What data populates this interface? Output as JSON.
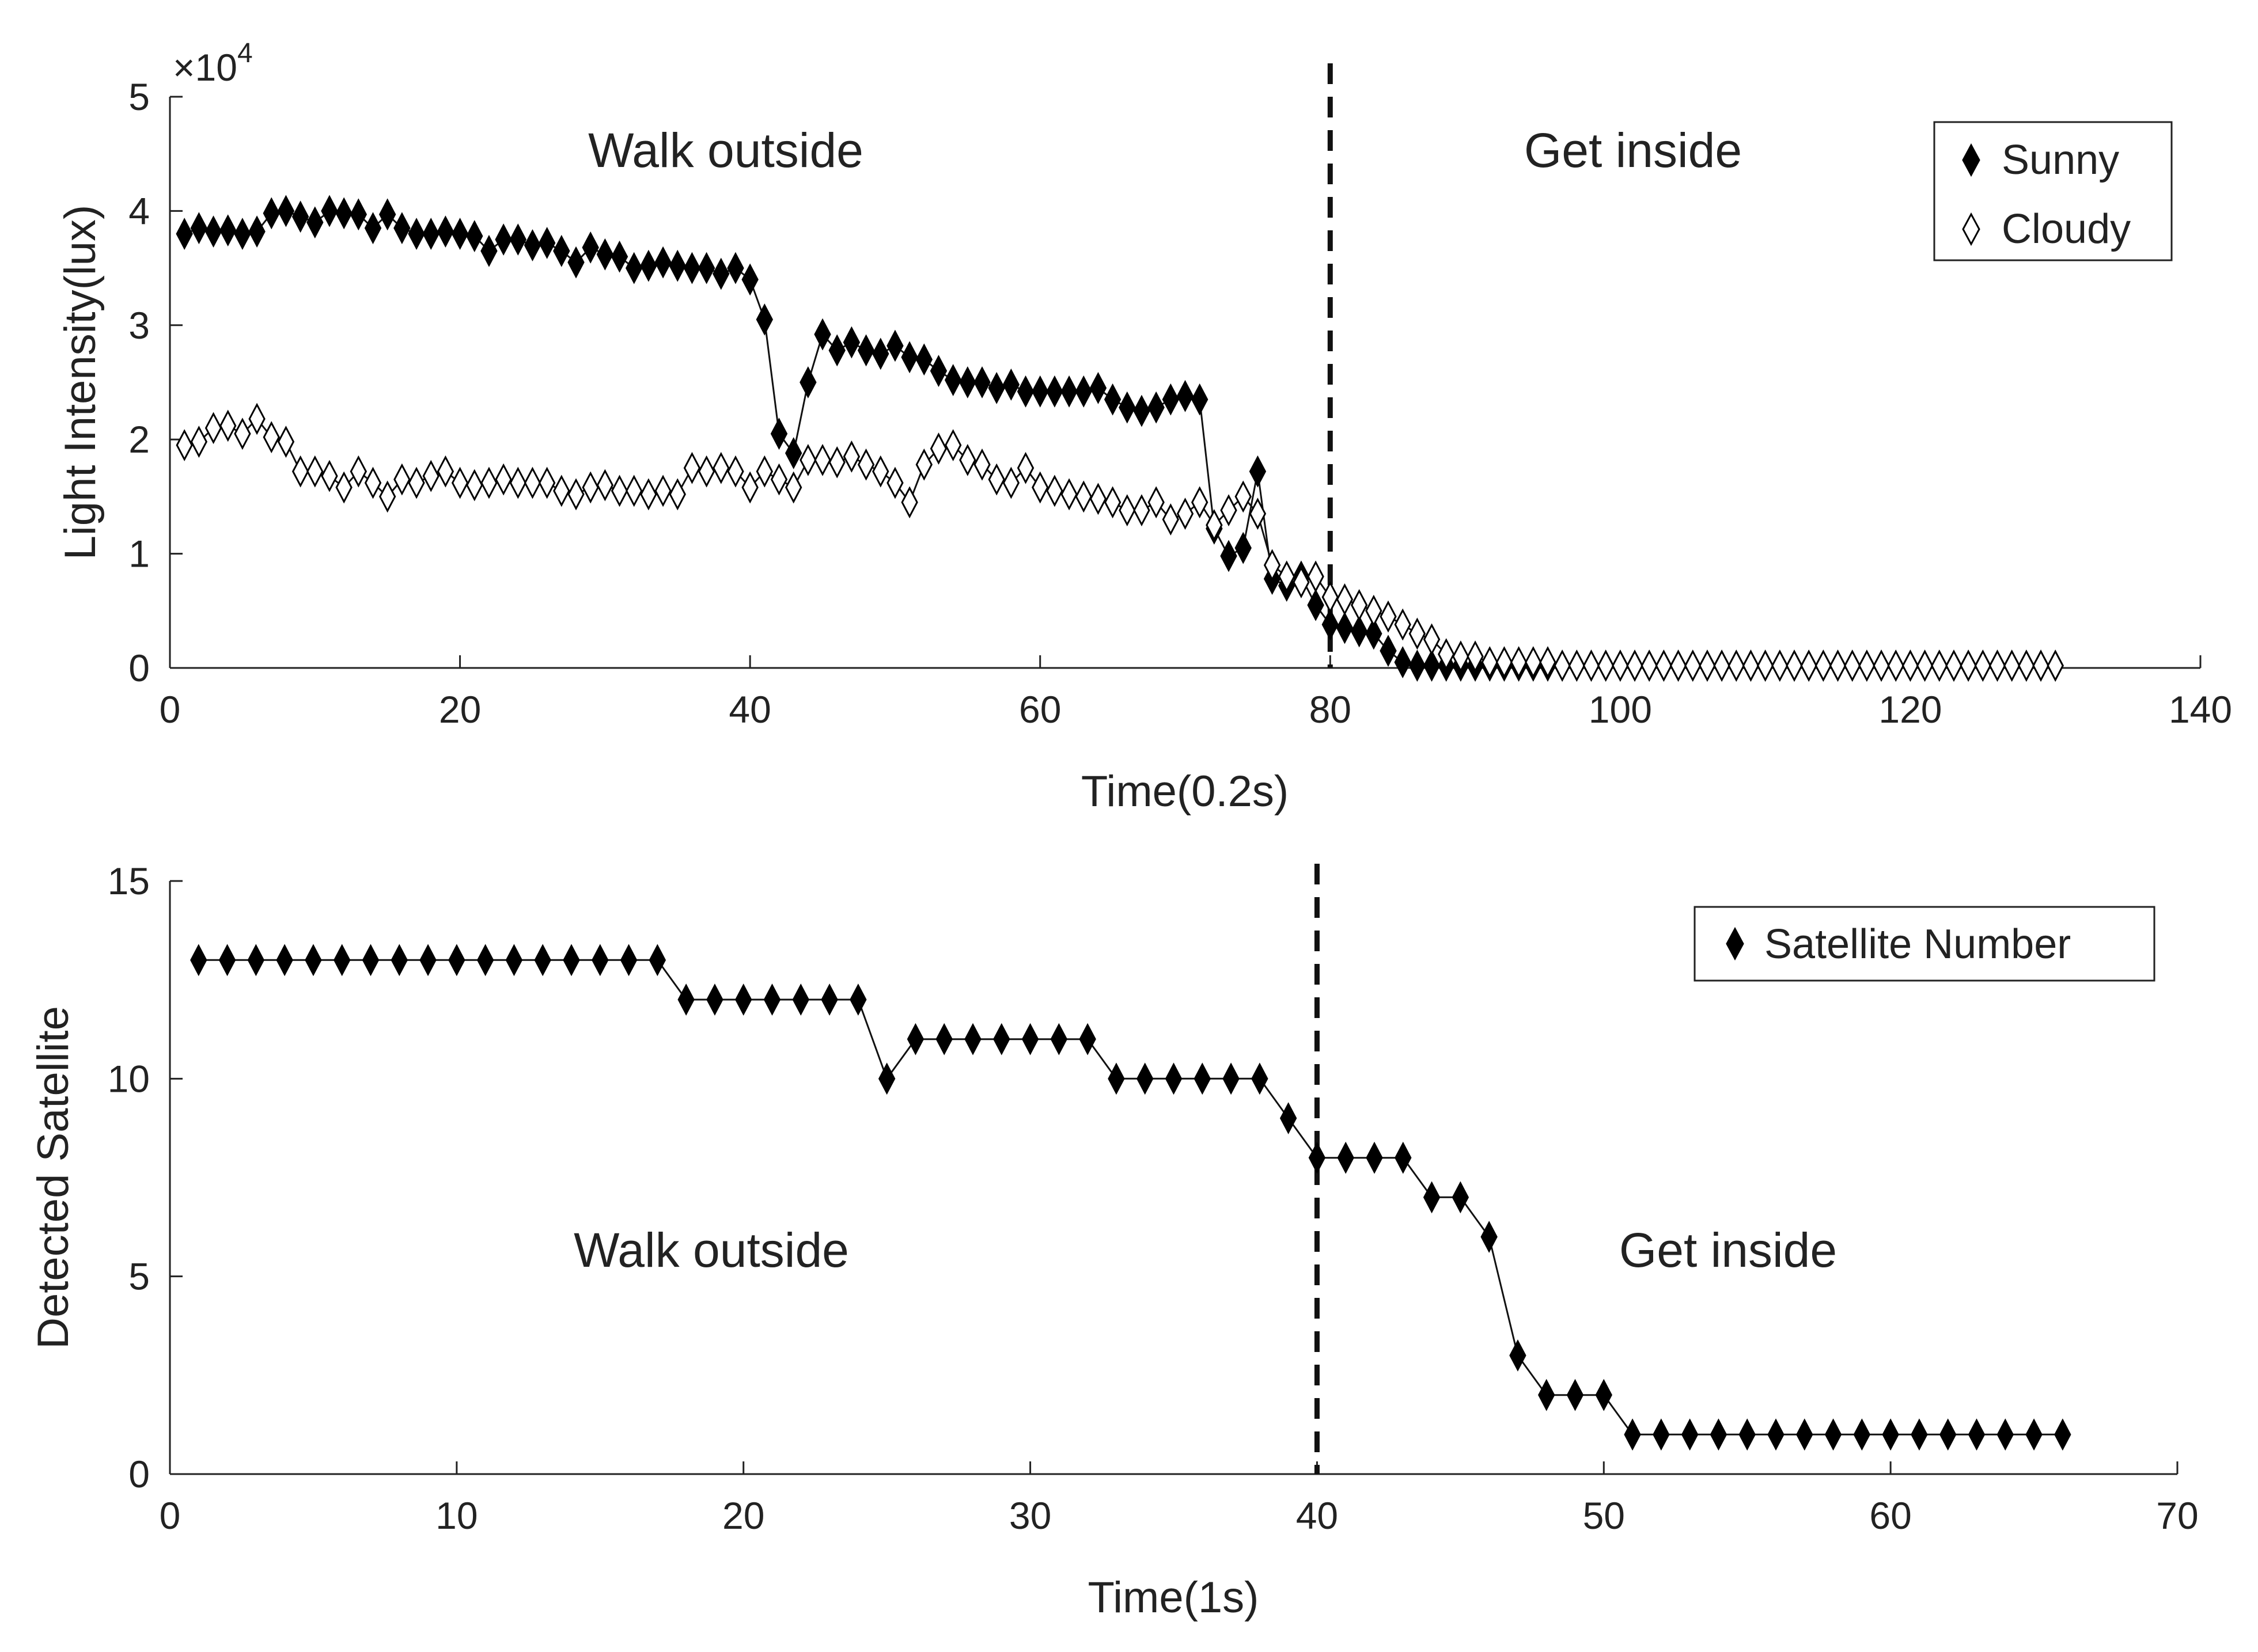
{
  "chart_data": [
    {
      "type": "line",
      "title": "",
      "xlabel": "Time(0.2s)",
      "ylabel": "Light Intensity(lux)",
      "y_multiplier": "×10",
      "y_multiplier_exp": "4",
      "xlim": [
        0,
        140
      ],
      "ylim": [
        0,
        5
      ],
      "xticks": [
        0,
        20,
        40,
        60,
        80,
        100,
        120,
        140
      ],
      "yticks": [
        0,
        1,
        2,
        3,
        4,
        5
      ],
      "divider_x": 80,
      "annotations": [
        "Walk outside",
        "Get inside"
      ],
      "legend_position": "top-right",
      "grid": false,
      "series": [
        {
          "name": "Sunny",
          "marker": "filled-diamond",
          "x": [
            1,
            2,
            3,
            4,
            5,
            6,
            7,
            8,
            9,
            10,
            11,
            12,
            13,
            14,
            15,
            16,
            17,
            18,
            19,
            20,
            21,
            22,
            23,
            24,
            25,
            26,
            27,
            28,
            29,
            30,
            31,
            32,
            33,
            34,
            35,
            36,
            37,
            38,
            39,
            40,
            41,
            42,
            43,
            44,
            45,
            46,
            47,
            48,
            49,
            50,
            51,
            52,
            53,
            54,
            55,
            56,
            57,
            58,
            59,
            60,
            61,
            62,
            63,
            64,
            65,
            66,
            67,
            68,
            69,
            70,
            71,
            72,
            73,
            74,
            75,
            76,
            77,
            78,
            79,
            80,
            81,
            82,
            83,
            84,
            85,
            86,
            87,
            88,
            89,
            90,
            91,
            92,
            93,
            94,
            95,
            96,
            97,
            98,
            99,
            100,
            101,
            102,
            103,
            104,
            105,
            106,
            107,
            108,
            109,
            110,
            111,
            112,
            113,
            114,
            115,
            116,
            117,
            118,
            119,
            120,
            121,
            122,
            123,
            124,
            125,
            126,
            127,
            128,
            129,
            130
          ],
          "values": [
            3.8,
            3.85,
            3.82,
            3.83,
            3.8,
            3.82,
            3.98,
            4.0,
            3.95,
            3.9,
            4.0,
            3.98,
            3.97,
            3.85,
            3.97,
            3.85,
            3.8,
            3.8,
            3.82,
            3.8,
            3.78,
            3.65,
            3.75,
            3.75,
            3.7,
            3.72,
            3.65,
            3.55,
            3.68,
            3.62,
            3.6,
            3.5,
            3.52,
            3.55,
            3.52,
            3.5,
            3.5,
            3.45,
            3.5,
            3.4,
            3.05,
            2.05,
            1.88,
            2.5,
            2.92,
            2.78,
            2.85,
            2.78,
            2.75,
            2.82,
            2.72,
            2.7,
            2.6,
            2.52,
            2.5,
            2.5,
            2.45,
            2.48,
            2.42,
            2.42,
            2.42,
            2.42,
            2.42,
            2.45,
            2.35,
            2.28,
            2.25,
            2.28,
            2.35,
            2.38,
            2.35,
            1.22,
            0.98,
            1.05,
            1.72,
            0.78,
            0.72,
            0.8,
            0.55,
            0.38,
            0.35,
            0.32,
            0.3,
            0.15,
            0.05,
            0.02,
            0.02,
            0.02,
            0.02,
            0.02,
            0.02,
            0.02,
            0.02,
            0.02,
            0.02,
            0.02,
            0.02,
            0.02,
            0.02,
            0.02,
            0.02,
            0.02,
            0.02,
            0.02,
            0.02,
            0.02,
            0.02,
            0.02,
            0.02,
            0.02,
            0.02,
            0.02,
            0.02,
            0.02,
            0.02,
            0.02,
            0.02,
            0.02,
            0.02,
            0.02,
            0.02,
            0.02,
            0.02,
            0.02,
            0.02,
            0.02,
            0.02,
            0.02,
            0.02,
            0.02
          ]
        },
        {
          "name": "Cloudy",
          "marker": "hollow-diamond",
          "x": [
            1,
            2,
            3,
            4,
            5,
            6,
            7,
            8,
            9,
            10,
            11,
            12,
            13,
            14,
            15,
            16,
            17,
            18,
            19,
            20,
            21,
            22,
            23,
            24,
            25,
            26,
            27,
            28,
            29,
            30,
            31,
            32,
            33,
            34,
            35,
            36,
            37,
            38,
            39,
            40,
            41,
            42,
            43,
            44,
            45,
            46,
            47,
            48,
            49,
            50,
            51,
            52,
            53,
            54,
            55,
            56,
            57,
            58,
            59,
            60,
            61,
            62,
            63,
            64,
            65,
            66,
            67,
            68,
            69,
            70,
            71,
            72,
            73,
            74,
            75,
            76,
            77,
            78,
            79,
            80,
            81,
            82,
            83,
            84,
            85,
            86,
            87,
            88,
            89,
            90,
            91,
            92,
            93,
            94,
            95,
            96,
            97,
            98,
            99,
            100,
            101,
            102,
            103,
            104,
            105,
            106,
            107,
            108,
            109,
            110,
            111,
            112,
            113,
            114,
            115,
            116,
            117,
            118,
            119,
            120,
            121,
            122,
            123,
            124,
            125,
            126,
            127,
            128,
            129,
            130
          ],
          "values": [
            1.95,
            1.98,
            2.1,
            2.12,
            2.05,
            2.18,
            2.02,
            1.98,
            1.72,
            1.72,
            1.68,
            1.58,
            1.72,
            1.62,
            1.5,
            1.65,
            1.62,
            1.68,
            1.72,
            1.62,
            1.6,
            1.62,
            1.65,
            1.62,
            1.62,
            1.62,
            1.55,
            1.52,
            1.58,
            1.6,
            1.55,
            1.55,
            1.52,
            1.55,
            1.52,
            1.75,
            1.72,
            1.75,
            1.72,
            1.58,
            1.72,
            1.65,
            1.58,
            1.82,
            1.82,
            1.8,
            1.85,
            1.78,
            1.72,
            1.62,
            1.45,
            1.78,
            1.92,
            1.95,
            1.82,
            1.78,
            1.65,
            1.62,
            1.75,
            1.58,
            1.55,
            1.52,
            1.5,
            1.48,
            1.45,
            1.38,
            1.38,
            1.45,
            1.3,
            1.35,
            1.45,
            1.25,
            1.38,
            1.5,
            1.35,
            0.9,
            0.8,
            0.75,
            0.8,
            0.62,
            0.6,
            0.55,
            0.5,
            0.45,
            0.38,
            0.3,
            0.25,
            0.12,
            0.1,
            0.1,
            0.05,
            0.05,
            0.05,
            0.05,
            0.05,
            0.02,
            0.02,
            0.02,
            0.02,
            0.02,
            0.02,
            0.02,
            0.02,
            0.02,
            0.02,
            0.02,
            0.02,
            0.02,
            0.02,
            0.02,
            0.02,
            0.02,
            0.02,
            0.02,
            0.02,
            0.02,
            0.02,
            0.02,
            0.02,
            0.02,
            0.02,
            0.02,
            0.02,
            0.02,
            0.02,
            0.02,
            0.02,
            0.02,
            0.02,
            0.02
          ]
        }
      ]
    },
    {
      "type": "line",
      "title": "",
      "xlabel": "Time(1s)",
      "ylabel": "Detected Satellite",
      "xlim": [
        0,
        70
      ],
      "ylim": [
        0,
        15
      ],
      "xticks": [
        0,
        10,
        20,
        30,
        40,
        50,
        60,
        70
      ],
      "yticks": [
        0,
        5,
        10,
        15
      ],
      "divider_x": 40,
      "annotations": [
        "Walk outside",
        "Get inside"
      ],
      "legend_position": "top-right",
      "grid": false,
      "series": [
        {
          "name": "Satellite Number",
          "marker": "filled-diamond",
          "x": [
            1,
            2,
            3,
            4,
            5,
            6,
            7,
            8,
            9,
            10,
            11,
            12,
            13,
            14,
            15,
            16,
            17,
            18,
            19,
            20,
            21,
            22,
            23,
            24,
            25,
            26,
            27,
            28,
            29,
            30,
            31,
            32,
            33,
            34,
            35,
            36,
            37,
            38,
            39,
            40,
            41,
            42,
            43,
            44,
            45,
            46,
            47,
            48,
            49,
            50,
            51,
            52,
            53,
            54,
            55,
            56,
            57,
            58,
            59,
            60,
            61,
            62,
            63,
            64,
            65,
            66
          ],
          "values": [
            13,
            13,
            13,
            13,
            13,
            13,
            13,
            13,
            13,
            13,
            13,
            13,
            13,
            13,
            13,
            13,
            13,
            12,
            12,
            12,
            12,
            12,
            12,
            12,
            10,
            11,
            11,
            11,
            11,
            11,
            11,
            11,
            10,
            10,
            10,
            10,
            10,
            10,
            9,
            8,
            8,
            8,
            8,
            7,
            7,
            6,
            3,
            2,
            2,
            2,
            1,
            1,
            1,
            1,
            1,
            1,
            1,
            1,
            1,
            1,
            1,
            1,
            1,
            1,
            1,
            1
          ]
        }
      ]
    }
  ]
}
